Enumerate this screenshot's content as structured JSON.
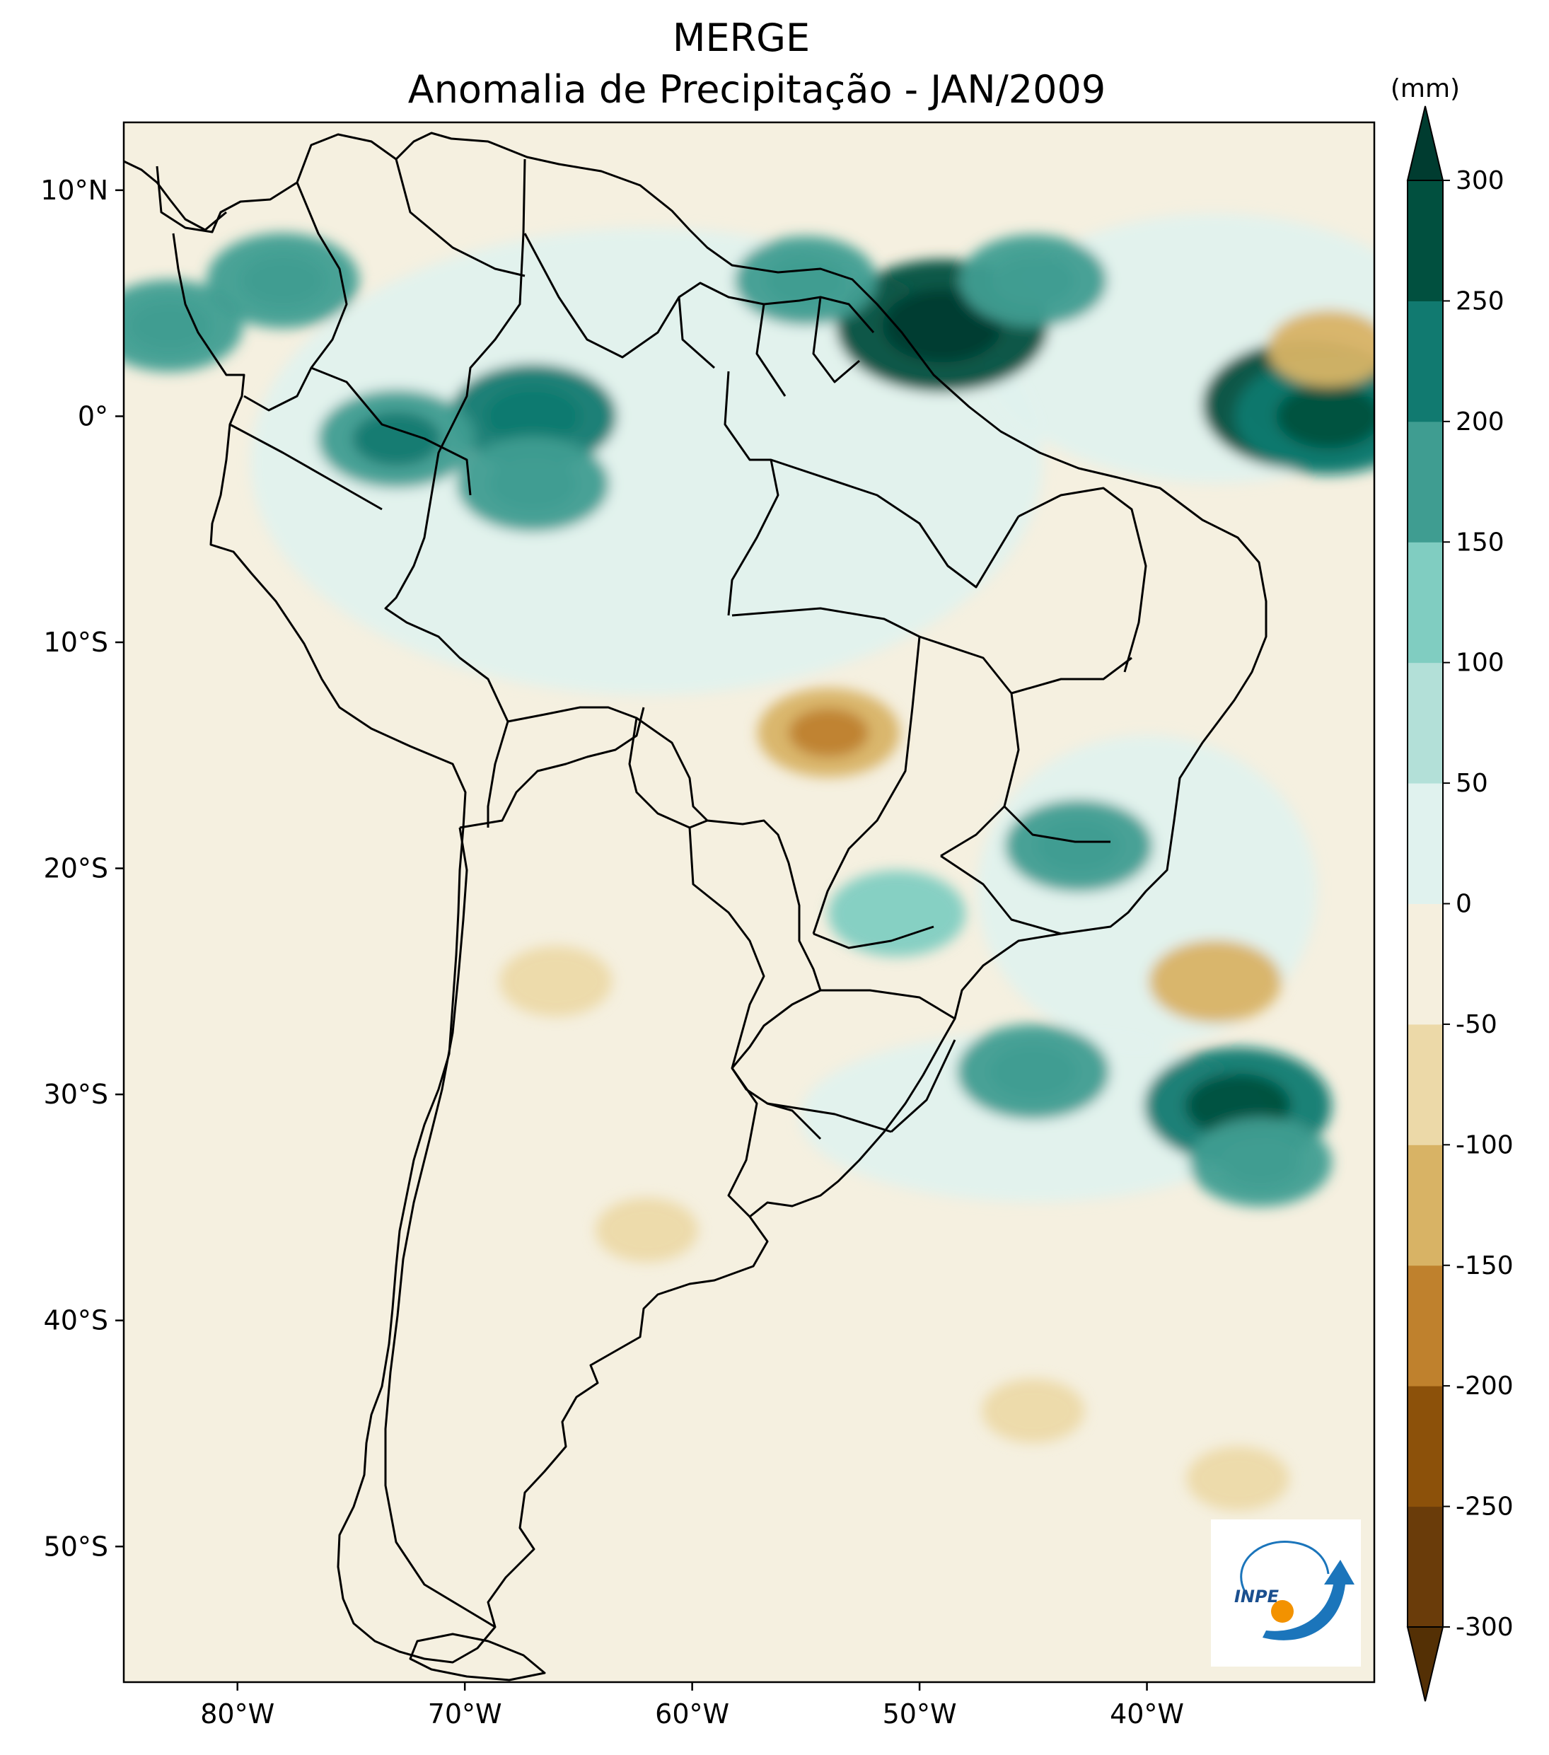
{
  "figure": {
    "title_line1": "MERGE",
    "title_line2": "Anomalia de Precipitação - JAN/2009"
  },
  "map": {
    "projection": "PlateCarree",
    "lon_range": [
      -85,
      -30
    ],
    "lat_range": [
      -56,
      13
    ],
    "lat_ticks": [
      {
        "value": 10,
        "label": "10°N"
      },
      {
        "value": 0,
        "label": "0°"
      },
      {
        "value": -10,
        "label": "10°S"
      },
      {
        "value": -20,
        "label": "20°S"
      },
      {
        "value": -30,
        "label": "30°S"
      },
      {
        "value": -40,
        "label": "40°S"
      },
      {
        "value": -50,
        "label": "50°S"
      }
    ],
    "lon_ticks": [
      {
        "value": -80,
        "label": "80°W"
      },
      {
        "value": -70,
        "label": "70°W"
      },
      {
        "value": -60,
        "label": "60°W"
      },
      {
        "value": -50,
        "label": "50°W"
      },
      {
        "value": -40,
        "label": "40°W"
      }
    ],
    "background_color": "#f5f0e0"
  },
  "colorbar": {
    "unit": "(mm)",
    "extend": "both",
    "levels": [
      -300,
      -250,
      -200,
      -150,
      -100,
      -50,
      0,
      50,
      100,
      150,
      200,
      250,
      300
    ],
    "labels": [
      "-300",
      "-250",
      "-200",
      "-150",
      "-100",
      "-50",
      "0",
      "50",
      "100",
      "150",
      "200",
      "250",
      "300"
    ],
    "colors": [
      "#6a3c0a",
      "#8c510a",
      "#bf812d",
      "#d8b365",
      "#ecd9a8",
      "#f5efde",
      "#e0f2ee",
      "#b3e0d8",
      "#80cdc1",
      "#3f9d91",
      "#117a70",
      "#01503f"
    ],
    "under_color": "#543005",
    "over_color": "#003c30"
  },
  "features": [
    {
      "name": "strong-positive-anomaly",
      "lon": -49,
      "lat": 4,
      "value": 290
    },
    {
      "name": "strong-positive-anomaly",
      "lon": -33,
      "lat": 0.5,
      "value": 280
    },
    {
      "name": "positive-anomaly",
      "lon": -32,
      "lat": 0,
      "value": 240
    },
    {
      "name": "positive-anomaly",
      "lon": -67,
      "lat": 0,
      "value": 200
    },
    {
      "name": "positive-anomaly",
      "lon": -73,
      "lat": -1,
      "value": 180
    },
    {
      "name": "positive-anomaly",
      "lon": -67,
      "lat": -3,
      "value": 170
    },
    {
      "name": "positive-anomaly",
      "lon": -45,
      "lat": 6,
      "value": 160
    },
    {
      "name": "positive-anomaly",
      "lon": -83,
      "lat": 4,
      "value": 160
    },
    {
      "name": "positive-anomaly",
      "lon": -78,
      "lat": 6,
      "value": 170
    },
    {
      "name": "positive-anomaly",
      "lon": -55,
      "lat": 6,
      "value": 150
    },
    {
      "name": "positive-anomaly",
      "lon": -36,
      "lat": -30.5,
      "value": 240
    },
    {
      "name": "positive-anomaly",
      "lon": -45,
      "lat": -29,
      "value": 170
    },
    {
      "name": "positive-anomaly",
      "lon": -35,
      "lat": -33,
      "value": 150
    },
    {
      "name": "positive-anomaly",
      "lon": -43,
      "lat": -19,
      "value": 160
    },
    {
      "name": "positive-anomaly",
      "lon": -51,
      "lat": -22,
      "value": 140
    },
    {
      "name": "negative-anomaly",
      "lon": -54,
      "lat": -14,
      "value": -150
    },
    {
      "name": "negative-anomaly",
      "lon": -37,
      "lat": -25,
      "value": -130
    },
    {
      "name": "negative-anomaly",
      "lon": -32,
      "lat": 3,
      "value": -110
    },
    {
      "name": "negative-anomaly",
      "lon": -66,
      "lat": -25,
      "value": -90
    },
    {
      "name": "negative-anomaly",
      "lon": -62,
      "lat": -36,
      "value": -70
    },
    {
      "name": "negative-anomaly",
      "lon": -45,
      "lat": -44,
      "value": -70
    },
    {
      "name": "negative-anomaly",
      "lon": -36,
      "lat": -47,
      "value": -70
    }
  ],
  "logo": {
    "text": "INPE"
  }
}
